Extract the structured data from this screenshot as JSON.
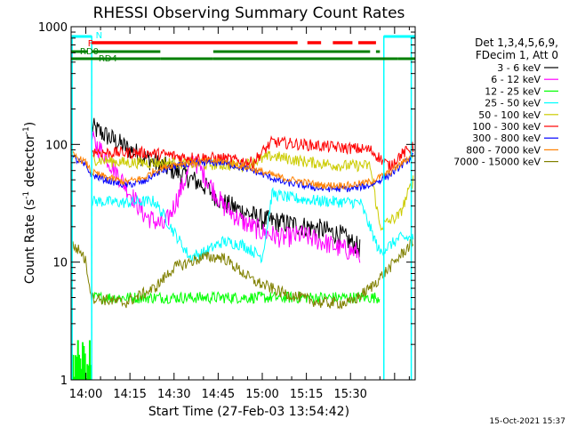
{
  "chart_data": {
    "type": "line",
    "title": "RHESSI Observing Summary Count Rates",
    "xlabel": "Start Time (27-Feb-03 13:54:42)",
    "ylabel_main": "Count Rate (s",
    "ylabel_sup1": "-1",
    "ylabel_mid": " detector",
    "ylabel_sup2": "-1",
    "ylabel_end": ")",
    "yscale": "log",
    "ylim": [
      1,
      1000
    ],
    "xlim_minutes": [
      13.25,
      30.8
    ],
    "xtick_labels": [
      "14:00",
      "14:15",
      "14:30",
      "14:45",
      "15:00",
      "15:15",
      "15:30"
    ],
    "ytick_labels": [
      "1",
      "10",
      "100",
      "1000"
    ],
    "legend_header": [
      "Det 1,3,4,5,6,9,",
      "FDecim 1, Att 0"
    ],
    "footer_date": "15-Oct-2021 15:37",
    "flags": {
      "N_label": "N",
      "F_label": "F",
      "RD0_label": "RD0",
      "RD4_label": "RD4"
    },
    "series": [
      {
        "name": "3 - 6 keV",
        "color": "#000000",
        "keys": [
          [
            14.3,
            140
          ],
          [
            15,
            120
          ],
          [
            16,
            95
          ],
          [
            17.5,
            70
          ],
          [
            18.5,
            60
          ],
          [
            20,
            45
          ],
          [
            21,
            32
          ],
          [
            22,
            27
          ],
          [
            23,
            23
          ],
          [
            24.5,
            21
          ],
          [
            26,
            19
          ],
          [
            27,
            17
          ],
          [
            28,
            13
          ]
        ]
      },
      {
        "name": "6 - 12 keV",
        "color": "#ff00ff",
        "keys": [
          [
            14.3,
            110
          ],
          [
            15,
            80
          ],
          [
            16,
            45
          ],
          [
            17,
            25
          ],
          [
            18,
            20
          ],
          [
            18.5,
            30
          ],
          [
            19.5,
            75
          ],
          [
            20.2,
            50
          ],
          [
            21,
            30
          ],
          [
            22,
            22
          ],
          [
            23,
            18
          ],
          [
            24,
            16
          ],
          [
            25,
            17
          ],
          [
            26,
            15
          ],
          [
            27,
            13
          ],
          [
            28,
            12
          ]
        ]
      },
      {
        "name": "12 - 25 keV",
        "color": "#00ff00",
        "keys": [
          [
            14.3,
            5
          ],
          [
            16,
            5
          ],
          [
            18,
            5
          ],
          [
            20,
            5
          ],
          [
            22,
            5
          ],
          [
            24,
            5
          ],
          [
            26,
            5
          ],
          [
            28,
            5
          ],
          [
            29,
            5
          ]
        ]
      },
      {
        "name": "25 - 50 keV",
        "color": "#00ffff",
        "keys": [
          [
            14.3,
            33
          ],
          [
            16,
            32
          ],
          [
            17.5,
            33
          ],
          [
            18.5,
            18
          ],
          [
            19.3,
            11
          ],
          [
            20,
            12
          ],
          [
            21,
            15
          ],
          [
            22,
            14
          ],
          [
            23,
            11
          ],
          [
            23.5,
            38
          ],
          [
            24.5,
            35
          ],
          [
            26,
            33
          ],
          [
            28,
            32
          ],
          [
            29,
            12
          ],
          [
            30,
            16
          ],
          [
            30.7,
            16
          ]
        ]
      },
      {
        "name": "50 - 100 keV",
        "color": "#cccc00",
        "keys": [
          [
            14.3,
            75
          ],
          [
            16,
            70
          ],
          [
            18,
            70
          ],
          [
            20,
            68
          ],
          [
            22,
            66
          ],
          [
            23.5,
            80
          ],
          [
            25,
            72
          ],
          [
            27,
            66
          ],
          [
            28.5,
            66
          ],
          [
            29,
            20
          ],
          [
            30,
            25
          ],
          [
            30.7,
            50
          ]
        ]
      },
      {
        "name": "100 - 300 keV",
        "color": "#ff0000",
        "keys": [
          [
            14.3,
            88
          ],
          [
            15,
            85
          ],
          [
            17,
            85
          ],
          [
            18,
            82
          ],
          [
            19,
            78
          ],
          [
            21,
            76
          ],
          [
            22.5,
            70
          ],
          [
            23.5,
            105
          ],
          [
            25,
            100
          ],
          [
            27,
            94
          ],
          [
            28.5,
            90
          ],
          [
            29.5,
            65
          ],
          [
            30,
            80
          ],
          [
            30.7,
            95
          ]
        ]
      },
      {
        "name": "300 - 800 keV",
        "color": "#0000ff",
        "keys": [
          [
            13.3,
            78
          ],
          [
            14,
            65
          ],
          [
            14.3,
            55
          ],
          [
            15,
            50
          ],
          [
            16,
            45
          ],
          [
            17,
            48
          ],
          [
            17.5,
            56
          ],
          [
            18.5,
            65
          ],
          [
            20,
            70
          ],
          [
            21,
            70
          ],
          [
            22.5,
            60
          ],
          [
            24,
            48
          ],
          [
            26,
            42
          ],
          [
            27.5,
            42
          ],
          [
            28.5,
            45
          ],
          [
            29.5,
            55
          ],
          [
            30.7,
            80
          ]
        ]
      },
      {
        "name": "800 - 7000 keV",
        "color": "#ff8000",
        "keys": [
          [
            13.3,
            82
          ],
          [
            14,
            70
          ],
          [
            14.3,
            58
          ],
          [
            15,
            53
          ],
          [
            16,
            48
          ],
          [
            17,
            52
          ],
          [
            17.5,
            60
          ],
          [
            18.5,
            68
          ],
          [
            20,
            72
          ],
          [
            21,
            72
          ],
          [
            22.5,
            62
          ],
          [
            24,
            52
          ],
          [
            26,
            45
          ],
          [
            27.5,
            45
          ],
          [
            28.5,
            48
          ],
          [
            29.5,
            58
          ],
          [
            30.7,
            82
          ]
        ]
      },
      {
        "name": "7000 - 15000 keV",
        "color": "#808000",
        "keys": [
          [
            13.3,
            14
          ],
          [
            13.8,
            12
          ],
          [
            14,
            10
          ],
          [
            14.3,
            5
          ],
          [
            16,
            4.5
          ],
          [
            17.5,
            6
          ],
          [
            18.5,
            9
          ],
          [
            20,
            11
          ],
          [
            21,
            11
          ],
          [
            22.5,
            7
          ],
          [
            24,
            5.5
          ],
          [
            26,
            4.5
          ],
          [
            27.5,
            4.5
          ],
          [
            28.5,
            6
          ],
          [
            29.5,
            9
          ],
          [
            30.7,
            15
          ]
        ]
      }
    ]
  }
}
